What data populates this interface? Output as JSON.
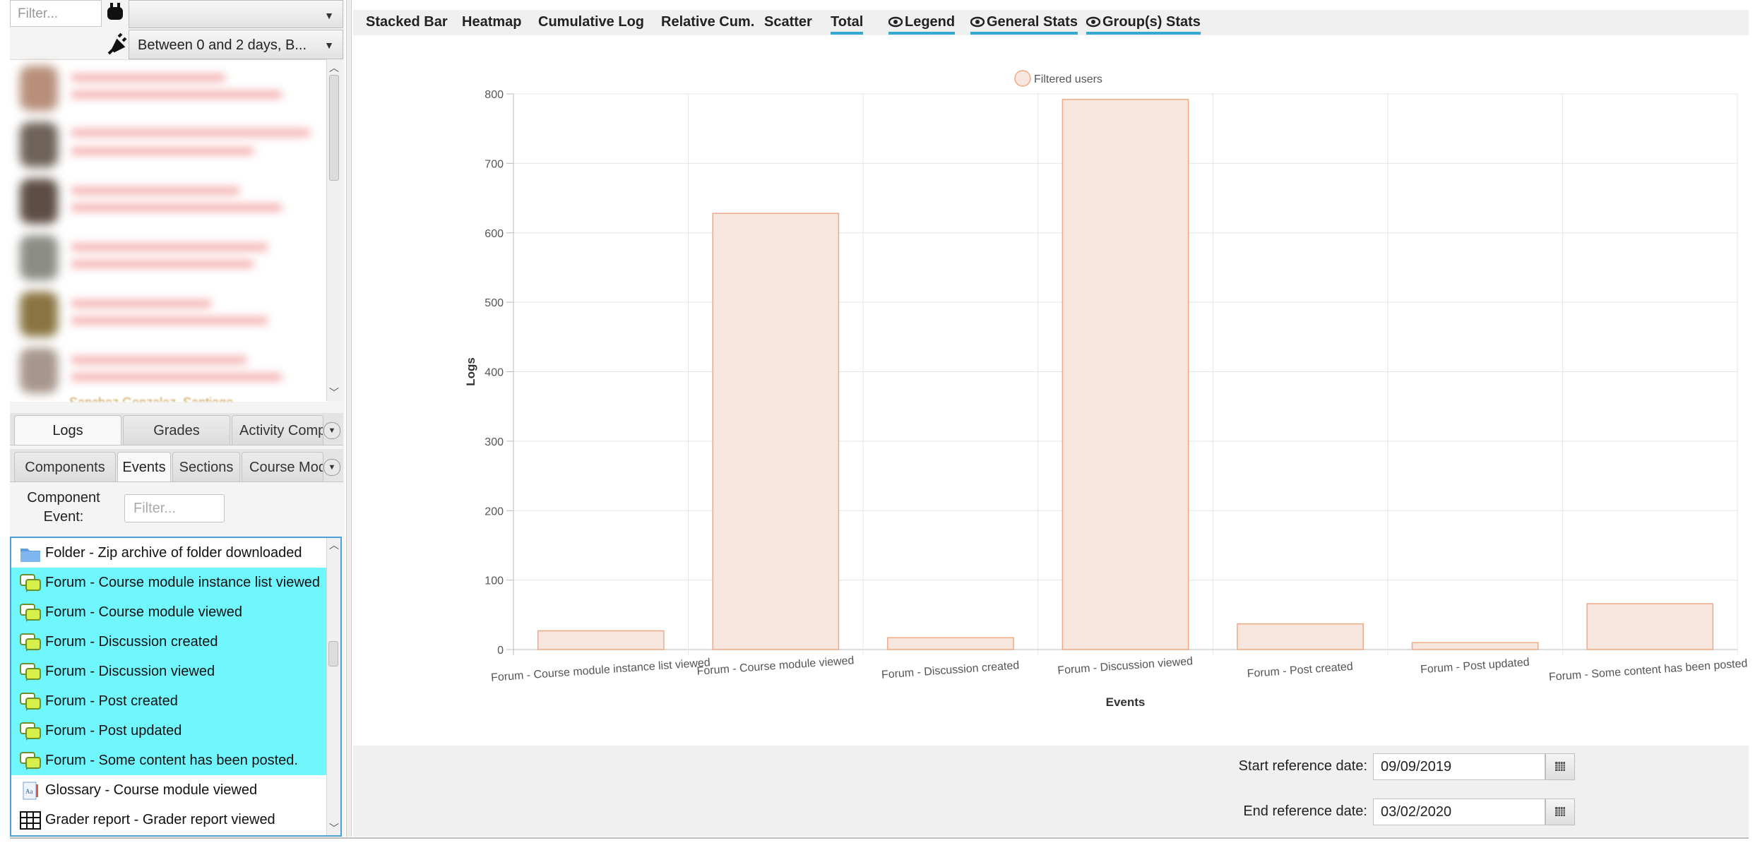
{
  "left_panel": {
    "filter_placeholder": "Filter...",
    "date_filter": "Between 0 and 2 days, B...",
    "cut_off_user": "Sanchez Gonzalez, Santiago",
    "tabs_row1": [
      "Logs",
      "Grades",
      "Activity Comp"
    ],
    "tabs_row2": [
      "Components",
      "Events",
      "Sections",
      "Course Modu"
    ],
    "component_event_label": "Component\nEvent:",
    "component_filter_placeholder": "Filter...",
    "events": [
      {
        "label": "Folder - Zip archive of folder downloaded",
        "icon": "folder-icon",
        "highlight": false
      },
      {
        "label": "Forum - Course module instance list viewed",
        "icon": "forum-icon",
        "highlight": true
      },
      {
        "label": "Forum - Course module viewed",
        "icon": "forum-icon",
        "highlight": true
      },
      {
        "label": "Forum - Discussion created",
        "icon": "forum-icon",
        "highlight": true
      },
      {
        "label": "Forum - Discussion viewed",
        "icon": "forum-icon",
        "highlight": true
      },
      {
        "label": "Forum - Post created",
        "icon": "forum-icon",
        "highlight": true
      },
      {
        "label": "Forum - Post updated",
        "icon": "forum-icon",
        "highlight": true
      },
      {
        "label": "Forum - Some content has been posted.",
        "icon": "forum-icon",
        "highlight": true
      },
      {
        "label": "Glossary - Course module viewed",
        "icon": "glossary-icon",
        "highlight": false
      },
      {
        "label": "Grader report - Grader report viewed",
        "icon": "grid-icon",
        "highlight": false
      }
    ],
    "colors": {
      "highlight": "#6ff7fd",
      "selection_border": "#4aa0d8"
    }
  },
  "toolbar": {
    "buttons": [
      {
        "label": "Stacked Bar",
        "eye": false,
        "active": false
      },
      {
        "label": "Heatmap",
        "eye": false,
        "active": false
      },
      {
        "label": "Cumulative Log",
        "eye": false,
        "active": false
      },
      {
        "label": "Relative Cum.",
        "eye": false,
        "active": false
      },
      {
        "label": "Scatter",
        "eye": false,
        "active": false
      },
      {
        "label": "Total",
        "eye": false,
        "active": true
      },
      {
        "label": "Legend",
        "eye": true,
        "active": true
      },
      {
        "label": "General Stats",
        "eye": true,
        "active": true
      },
      {
        "label": "Group(s) Stats",
        "eye": true,
        "active": true
      }
    ],
    "accent": "#34a9d6"
  },
  "chart_data": {
    "type": "bar",
    "categories": [
      "Forum - Course module instance list viewed",
      "Forum - Course module viewed",
      "Forum - Discussion created",
      "Forum - Discussion viewed",
      "Forum - Post created",
      "Forum - Post updated",
      "Forum - Some content has been posted."
    ],
    "series": [
      {
        "name": "Filtered users",
        "values": [
          27,
          628,
          17,
          792,
          37,
          10,
          66
        ]
      }
    ],
    "xlabel": "Events",
    "ylabel": "Logs",
    "ylim": [
      0,
      800
    ],
    "yticks": [
      0,
      100,
      200,
      300,
      400,
      500,
      600,
      700,
      800
    ],
    "grid": true,
    "legend_position": "top-center",
    "bar_fill": "#f6e6de",
    "bar_stroke": "#efaa84"
  },
  "dates": {
    "start_label": "Start reference date:",
    "start_value": "09/09/2019",
    "end_label": "End reference date:",
    "end_value": "03/02/2020"
  }
}
